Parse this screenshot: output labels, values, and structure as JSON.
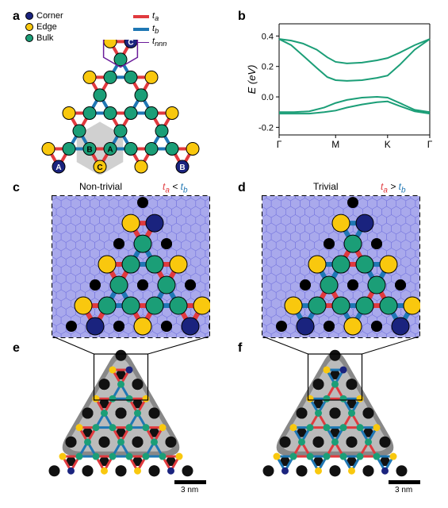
{
  "labels": {
    "a": "a",
    "b": "b",
    "c": "c",
    "d": "d",
    "e": "e",
    "f": "f"
  },
  "panel_a": {
    "legend_sites": [
      {
        "label": "Corner",
        "color": "#1a237e"
      },
      {
        "label": "Edge",
        "color": "#f9c80e"
      },
      {
        "label": "Bulk",
        "color": "#1b9e77"
      }
    ],
    "legend_hop": [
      {
        "key": "t",
        "sub": "a",
        "color": "#e03a3e",
        "width": 4
      },
      {
        "key": "t",
        "sub": "b",
        "color": "#1f77b4",
        "width": 4
      },
      {
        "key": "t",
        "sub": "nnn",
        "color": "#6a1b9a",
        "width": 1.5
      }
    ],
    "sublattice_labels": [
      "A",
      "B",
      "C"
    ],
    "corner_labels": [
      "A",
      "B",
      "C"
    ],
    "colors": {
      "corner": "#1a237e",
      "edge": "#f9c80e",
      "bulk": "#1b9e77",
      "ta": "#e03a3e",
      "tb": "#1f77b4",
      "tnnn": "#6a1b9a",
      "sublat_label": "#ffffff",
      "outline": "#000000",
      "hex_fill": "#d0d0d0"
    },
    "triangle_rows": 4,
    "site_radius": 8
  },
  "panel_b": {
    "ylabel": "E (eV)",
    "yticks": [
      -0.2,
      0.0,
      0.2,
      0.4
    ],
    "xticks": [
      "Γ",
      "M",
      "K",
      "Γ"
    ],
    "xtick_pos": [
      0.0,
      0.375,
      0.72,
      1.0
    ],
    "ylim": [
      -0.25,
      0.48
    ],
    "line_color": "#1b9e77",
    "line_width": 2,
    "background": "#ffffff",
    "axis_color": "#000000",
    "bands": [
      [
        [
          0,
          -0.1
        ],
        [
          0.1,
          -0.1
        ],
        [
          0.2,
          -0.095
        ],
        [
          0.3,
          -0.07
        ],
        [
          0.375,
          -0.04
        ],
        [
          0.45,
          -0.02
        ],
        [
          0.55,
          -0.005
        ],
        [
          0.65,
          0.0
        ],
        [
          0.72,
          -0.005
        ],
        [
          0.8,
          -0.04
        ],
        [
          0.9,
          -0.085
        ],
        [
          1.0,
          -0.1
        ]
      ],
      [
        [
          0,
          -0.11
        ],
        [
          0.1,
          -0.11
        ],
        [
          0.2,
          -0.11
        ],
        [
          0.3,
          -0.1
        ],
        [
          0.375,
          -0.09
        ],
        [
          0.45,
          -0.07
        ],
        [
          0.55,
          -0.05
        ],
        [
          0.65,
          -0.035
        ],
        [
          0.72,
          -0.03
        ],
        [
          0.8,
          -0.06
        ],
        [
          0.9,
          -0.095
        ],
        [
          1.0,
          -0.11
        ]
      ],
      [
        [
          0,
          0.38
        ],
        [
          0.08,
          0.34
        ],
        [
          0.16,
          0.27
        ],
        [
          0.25,
          0.19
        ],
        [
          0.32,
          0.13
        ],
        [
          0.375,
          0.11
        ],
        [
          0.45,
          0.105
        ],
        [
          0.55,
          0.11
        ],
        [
          0.65,
          0.125
        ],
        [
          0.72,
          0.14
        ],
        [
          0.8,
          0.21
        ],
        [
          0.9,
          0.31
        ],
        [
          1.0,
          0.38
        ]
      ],
      [
        [
          0,
          0.38
        ],
        [
          0.08,
          0.37
        ],
        [
          0.16,
          0.35
        ],
        [
          0.25,
          0.31
        ],
        [
          0.32,
          0.26
        ],
        [
          0.375,
          0.23
        ],
        [
          0.45,
          0.22
        ],
        [
          0.55,
          0.225
        ],
        [
          0.65,
          0.24
        ],
        [
          0.72,
          0.255
        ],
        [
          0.8,
          0.29
        ],
        [
          0.9,
          0.34
        ],
        [
          1.0,
          0.38
        ]
      ]
    ]
  },
  "panel_cd": {
    "c_title": "Non-trivial",
    "d_title": "Trivial",
    "c_rel_html": "t<sub>a</sub> < t<sub>b</sub>",
    "d_rel_html": "t<sub>a</sub> > t<sub>b</sub>",
    "rel_color_a": "#e03a3e",
    "rel_color_b": "#1f77b4",
    "colors": {
      "substrate": "#a9a9ec",
      "substrate_stroke": "#6b6bdc",
      "co_atom": "#000000",
      "corner": "#1a237e",
      "edge": "#f9c80e",
      "bulk": "#1b9e77",
      "ta": "#e03a3e",
      "tb": "#1f77b4",
      "border": "#000000"
    },
    "triangle_rows": 3
  },
  "panel_ef": {
    "scalebar_label": "3 nm",
    "scalebar_label_f": "3 nm",
    "colors": {
      "bg_outer": "#888888",
      "bg_mid": "#bbbbbb",
      "co_dark": "#111111",
      "corner": "#1a237e",
      "edge": "#f9c80e",
      "bulk": "#1b9e77",
      "ta": "#e03a3e",
      "tb": "#1f77b4",
      "scalebar": "#000000",
      "zoom_line": "#000000"
    },
    "triangle_rows": 4
  }
}
